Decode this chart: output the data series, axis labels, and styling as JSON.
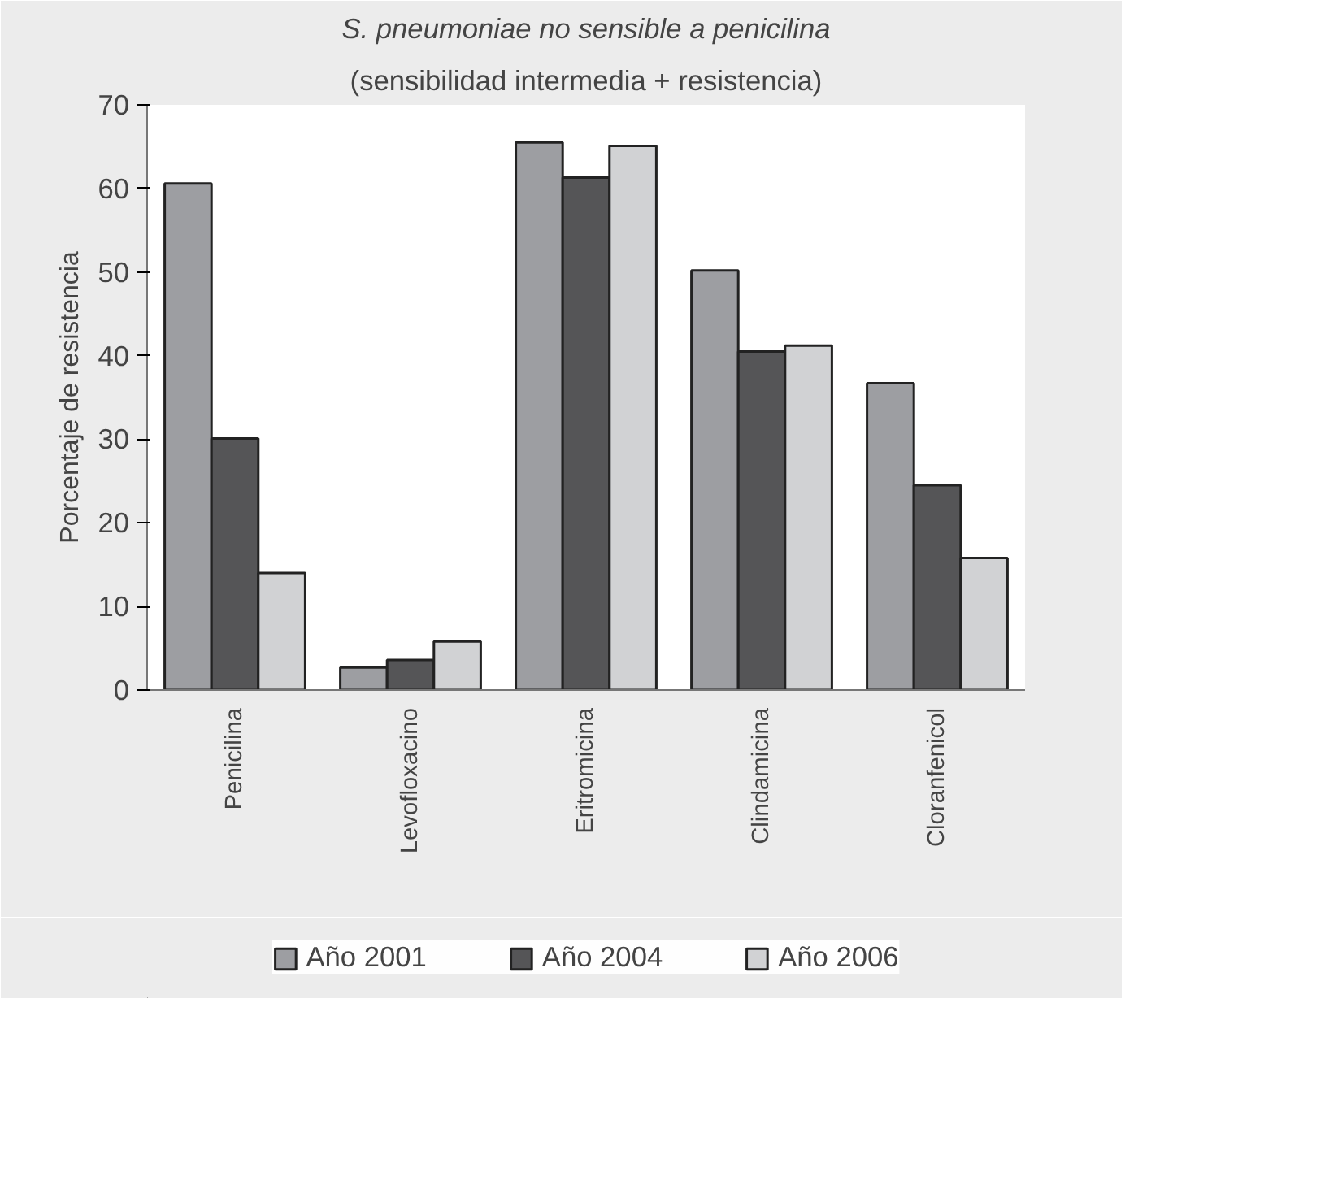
{
  "chart_data": {
    "type": "bar",
    "title": "S. pneumoniae no sensible a penicilina",
    "subtitle": "(sensibilidad intermedia + resistencia)",
    "ylabel": "Porcentaje de resistencia",
    "categories": [
      "Penicilina",
      "Levofloxacino",
      "Eritromicina",
      "Clindamicina",
      "Cloranfenicol"
    ],
    "series": [
      {
        "name": "Año 2001",
        "color": "#9d9ea2",
        "values": [
          60.6,
          2.7,
          65.5,
          50.2,
          36.7
        ]
      },
      {
        "name": "Año 2004",
        "color": "#555557",
        "values": [
          30.1,
          3.6,
          61.3,
          40.5,
          24.5
        ]
      },
      {
        "name": "Año 2006",
        "color": "#d1d2d4",
        "values": [
          14.0,
          5.8,
          65.1,
          41.2,
          15.8
        ]
      }
    ],
    "ylim": [
      0,
      70
    ],
    "yticks": [
      0,
      10,
      20,
      30,
      40,
      50,
      60,
      70
    ],
    "grid": false,
    "legend": "bottom"
  }
}
